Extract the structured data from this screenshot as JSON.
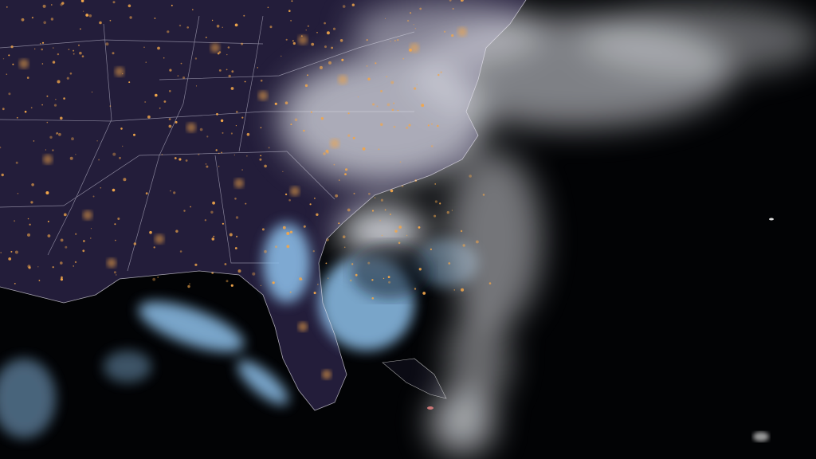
{
  "image": {
    "kind": "night-time satellite view of a hurricane off the southeastern coast",
    "colors": {
      "ocean": "#020305",
      "land": "#231d3a",
      "cloud_high": "#e6e8ee",
      "cloud_low": "#8fc3ee",
      "city_lights": "#f2a64a",
      "borders": "#c9c6d8"
    }
  }
}
